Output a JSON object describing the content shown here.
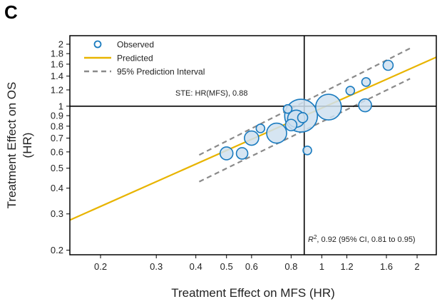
{
  "panel_label": "C",
  "chart_data": {
    "type": "scatter",
    "title": "",
    "xlabel": "Treatment Effect on MFS (HR)",
    "ylabel_line1": "Treatment Effect on OS",
    "ylabel_line2": "(HR)",
    "x_scale": "log",
    "y_scale": "log",
    "xlim": [
      0.16,
      2.3
    ],
    "ylim": [
      0.19,
      2.2
    ],
    "x_ticks": [
      0.2,
      0.3,
      0.4,
      0.5,
      0.6,
      0.8,
      1,
      1.2,
      1.6,
      2
    ],
    "x_tick_labels": [
      "0.2",
      "0.3",
      "0.4",
      "0.5",
      "0.6",
      "0.8",
      "1",
      "1.2",
      "1.6",
      "2"
    ],
    "y_ticks": [
      0.2,
      0.3,
      0.4,
      0.5,
      0.6,
      0.7,
      0.8,
      0.9,
      1,
      1.2,
      1.4,
      1.6,
      1.8,
      2
    ],
    "y_tick_labels": [
      "0.2",
      "0.3",
      "0.4",
      "0.5",
      "0.6",
      "0.7",
      "0.8",
      "0.9",
      "1",
      "1.2",
      "1.4",
      "1.6",
      "1.8",
      "2"
    ],
    "grid": false,
    "legend": {
      "position": "top-left",
      "entries": [
        {
          "label": "Observed",
          "marker": "circle"
        },
        {
          "label": "Predicted",
          "marker": "solid-line"
        },
        {
          "label": "95% Prediction Interval",
          "marker": "dashed-line"
        }
      ]
    },
    "reference_lines": {
      "hr_os": 1,
      "ste_mfs": 0.88
    },
    "annotations": {
      "ste": "STE: HR(MFS), 0.88",
      "r2_prefix": "R",
      "r2_sup": "2",
      "r2_rest": ", 0.92 (95% CI, 0.81 to 0.95)"
    },
    "observed": [
      {
        "x": 0.5,
        "y": 0.59,
        "size": 9
      },
      {
        "x": 0.56,
        "y": 0.59,
        "size": 8
      },
      {
        "x": 0.6,
        "y": 0.7,
        "size": 10
      },
      {
        "x": 0.64,
        "y": 0.78,
        "size": 6
      },
      {
        "x": 0.72,
        "y": 0.74,
        "size": 14
      },
      {
        "x": 0.78,
        "y": 0.97,
        "size": 6
      },
      {
        "x": 0.8,
        "y": 0.81,
        "size": 8
      },
      {
        "x": 0.83,
        "y": 0.87,
        "size": 12
      },
      {
        "x": 0.86,
        "y": 0.9,
        "size": 23
      },
      {
        "x": 0.87,
        "y": 0.88,
        "size": 7
      },
      {
        "x": 0.9,
        "y": 0.61,
        "size": 6
      },
      {
        "x": 1.05,
        "y": 0.99,
        "size": 18
      },
      {
        "x": 1.23,
        "y": 1.19,
        "size": 6
      },
      {
        "x": 1.37,
        "y": 1.01,
        "size": 9
      },
      {
        "x": 1.38,
        "y": 1.31,
        "size": 6
      },
      {
        "x": 1.62,
        "y": 1.58,
        "size": 7
      }
    ],
    "predicted_line": {
      "x": [
        0.16,
        2.3
      ],
      "y": [
        0.28,
        1.73
      ]
    },
    "prediction_interval_upper": {
      "x": [
        0.41,
        1.9
      ],
      "y": [
        0.58,
        1.91
      ]
    },
    "prediction_interval_lower": {
      "x": [
        0.41,
        1.9
      ],
      "y": [
        0.43,
        1.36
      ]
    },
    "colors": {
      "observed_stroke": "#1a7bbf",
      "observed_fill": "#cfe0f0",
      "predicted": "#e8b400",
      "interval": "#8a8a8a",
      "reference": "#000000"
    }
  }
}
